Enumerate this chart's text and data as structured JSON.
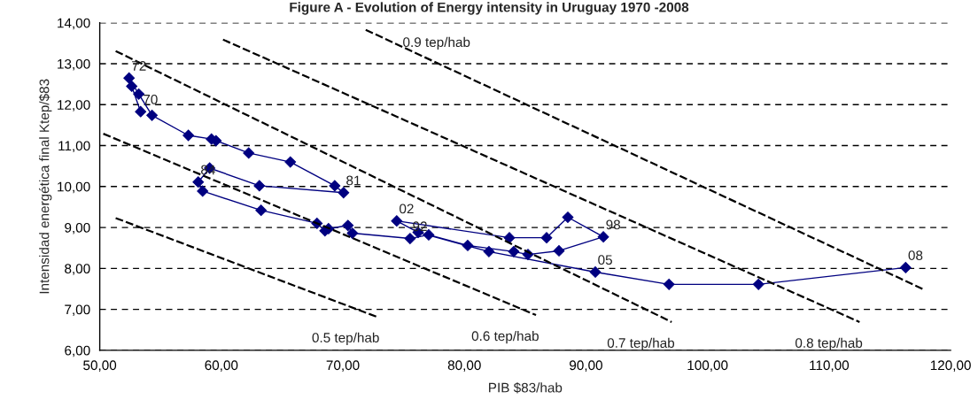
{
  "chart_data": {
    "type": "line",
    "title": "Figure A - Evolution of Energy intensity in Uruguay 1970 -2008",
    "xlabel": "PIB $83/hab",
    "ylabel": "Intensidad energética final Ktep/$83",
    "xlim": [
      50,
      120
    ],
    "ylim": [
      6,
      14
    ],
    "xticks": [
      {
        "value": 50,
        "label": "50,00"
      },
      {
        "value": 60,
        "label": "60,00"
      },
      {
        "value": 70,
        "label": "70,00"
      },
      {
        "value": 80,
        "label": "80,00"
      },
      {
        "value": 90,
        "label": "90,00"
      },
      {
        "value": 100,
        "label": "100,00"
      },
      {
        "value": 110,
        "label": "110,00"
      },
      {
        "value": 120,
        "label": "120,00"
      }
    ],
    "yticks": [
      {
        "value": 6,
        "label": "6,00"
      },
      {
        "value": 7,
        "label": "7,00"
      },
      {
        "value": 8,
        "label": "8,00"
      },
      {
        "value": 9,
        "label": "9,00"
      },
      {
        "value": 10,
        "label": "10,00"
      },
      {
        "value": 11,
        "label": "11,00"
      },
      {
        "value": 12,
        "label": "12,00"
      },
      {
        "value": 13,
        "label": "13,00"
      },
      {
        "value": 14,
        "label": "14,00"
      }
    ],
    "grid": "y",
    "legend": false,
    "series": [
      {
        "color": "#000080",
        "marker": "diamond",
        "x": [
          53.36,
          52.63,
          52.41,
          53.21,
          54.3,
          57.29,
          59.19,
          59.56,
          62.25,
          65.68,
          69.33,
          70.06,
          63.13,
          59.04,
          58.1,
          58.46,
          63.27,
          67.87,
          68.53,
          68.82,
          70.42,
          70.79,
          75.53,
          77.06,
          80.27,
          84.06,
          85.23,
          87.78,
          91.43,
          88.51,
          86.76,
          83.7,
          74.43,
          76.19,
          82.02,
          90.77,
          96.83,
          104.19,
          116.3
        ],
        "values": [
          11.83,
          12.45,
          12.65,
          12.26,
          11.74,
          11.25,
          11.16,
          11.12,
          10.82,
          10.6,
          10.02,
          9.85,
          10.02,
          10.45,
          10.11,
          9.89,
          9.42,
          9.1,
          8.92,
          8.97,
          9.05,
          8.86,
          8.73,
          8.82,
          8.56,
          8.41,
          8.34,
          8.43,
          8.77,
          9.25,
          8.75,
          8.75,
          9.16,
          8.88,
          8.41,
          7.91,
          7.61,
          7.61,
          8.02
        ]
      },
      {
        "name": "0.5 tep/hab",
        "color": "#000000",
        "marker": "none",
        "line_style": "dashed",
        "x": [
          51.31,
          72.76
        ],
        "values": [
          9.23,
          6.82
        ]
      },
      {
        "name": "0.6 tep/hab",
        "color": "#000000",
        "marker": "none",
        "line_style": "dashed",
        "x": [
          50.29,
          85.89
        ],
        "values": [
          11.29,
          6.86
        ]
      },
      {
        "name": "0.7 tep/hab",
        "color": "#000000",
        "marker": "none",
        "line_style": "dashed",
        "x": [
          51.31,
          97.05
        ],
        "values": [
          13.31,
          6.69
        ]
      },
      {
        "name": "0.8 tep/hab",
        "color": "#000000",
        "marker": "none",
        "line_style": "dashed",
        "x": [
          60.14,
          112.51
        ],
        "values": [
          13.59,
          6.69
        ]
      },
      {
        "name": "0.9 tep/hab",
        "color": "#000000",
        "marker": "none",
        "line_style": "dashed",
        "x": [
          71.88,
          117.83
        ],
        "values": [
          13.83,
          7.48
        ]
      }
    ],
    "annotations": [
      {
        "text": "72",
        "x": 52.41,
        "y": 12.65
      },
      {
        "text": "70",
        "x": 53.36,
        "y": 11.83
      },
      {
        "text": "84",
        "x": 58.1,
        "y": 10.11
      },
      {
        "text": "81",
        "x": 70.06,
        "y": 9.85
      },
      {
        "text": "02",
        "x": 74.43,
        "y": 9.16
      },
      {
        "text": "92",
        "x": 75.53,
        "y": 8.73
      },
      {
        "text": "98",
        "x": 91.43,
        "y": 8.77
      },
      {
        "text": "05",
        "x": 90.77,
        "y": 7.91
      },
      {
        "text": "08",
        "x": 116.3,
        "y": 8.02
      }
    ]
  }
}
